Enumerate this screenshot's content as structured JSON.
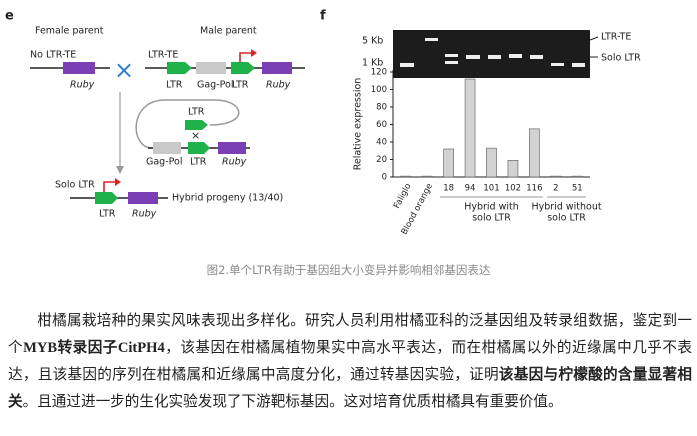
{
  "panel_e": {
    "label": "e",
    "female_parent": "Female parent",
    "male_parent": "Male parent",
    "female_construct": "No LTR-TE",
    "male_construct": "LTR-TE",
    "female_ruby": "Ruby",
    "male_labels": [
      "LTR",
      "Gag-Pol",
      "LTR",
      "Ruby"
    ],
    "loop_labels": [
      "LTR",
      "Gag-Pol",
      "LTR",
      "Ruby"
    ],
    "solo_construct": "Solo LTR",
    "progeny": "Hybrid progeny (13/40)",
    "progeny_labels": [
      "LTR",
      "Ruby"
    ]
  },
  "chart_data": {
    "type": "bar",
    "label": "f",
    "ylabel": "Relative expression",
    "categories": [
      "Faliglo",
      "Blood orange",
      "18",
      "94",
      "101",
      "102",
      "116",
      "2",
      "51"
    ],
    "values": [
      1,
      1,
      32,
      112,
      33,
      19,
      55,
      1,
      1
    ],
    "color": "#d2d2d2",
    "ylim": [
      0,
      120
    ],
    "yticks": [
      0,
      20,
      40,
      60,
      80,
      100,
      120
    ],
    "group_labels": [
      [
        "Hybrid with",
        "solo LTR"
      ],
      [
        "Hybrid without",
        "solo LTR"
      ]
    ],
    "gel": {
      "size_markers": [
        "5 Kb",
        "1 Kb"
      ],
      "band_labels": [
        "LTR-TE",
        "Solo LTR"
      ]
    }
  },
  "caption": "图2.单个LTR有助于基因组大小变异并影响相邻基因表达",
  "paragraph": [
    {
      "text": "柑橘属栽培种的果实风味表现出多样化。研究人员利用柑橘亚科的泛基因组及转录组数据，鉴定到一个",
      "bold": false
    },
    {
      "text": "MYB转录因子CitPH4",
      "bold": true
    },
    {
      "text": "，该基因在柑橘属植物果实中高水平表达，而在柑橘属以外的近缘属中几乎不表达，且该基因的序列在柑橘属和近缘属中高度分化，通过转基因实验，证明",
      "bold": false
    },
    {
      "text": "该基因与柠檬酸的含量显著相关",
      "bold": true
    },
    {
      "text": "。且通过进一步的生化实验发现了下游靶标基因。这对培育优质柑橘具有重要价值。",
      "bold": false
    }
  ]
}
